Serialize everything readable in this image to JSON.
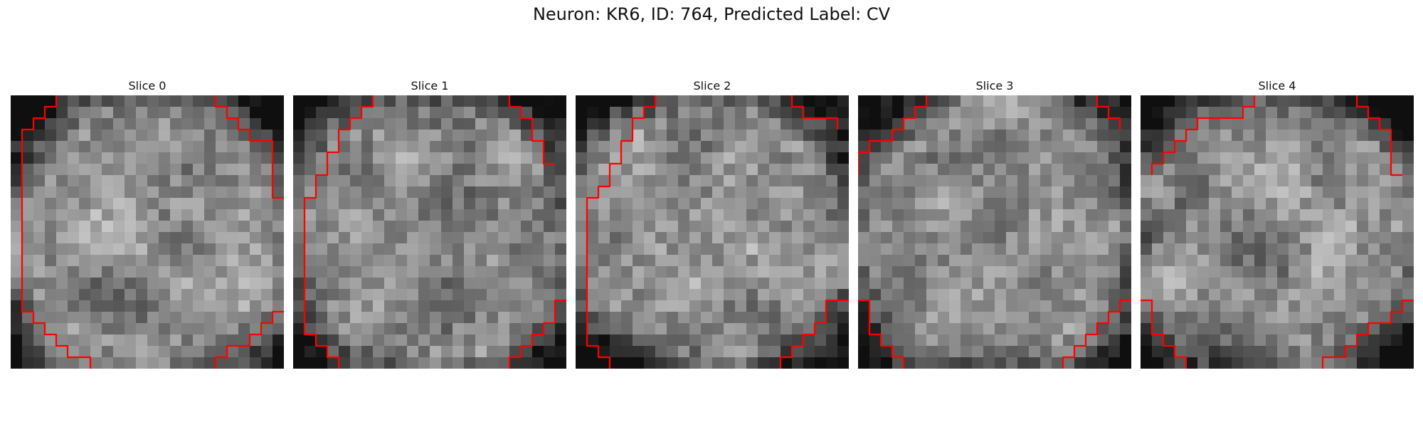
{
  "figure": {
    "title": "Neuron: KR6, ID: 764, Predicted Label: CV"
  },
  "panels": [
    {
      "title": "Slice 0",
      "seed": 11,
      "contour_color": "#ff0000"
    },
    {
      "title": "Slice 1",
      "seed": 23,
      "contour_color": "#ff0000"
    },
    {
      "title": "Slice 2",
      "seed": 37,
      "contour_color": "#ff0000"
    },
    {
      "title": "Slice 3",
      "seed": 41,
      "contour_color": "#ff0000"
    },
    {
      "title": "Slice 4",
      "seed": 53,
      "contour_color": "#ff0000"
    }
  ],
  "colors": {
    "pixel_dark": "#101010",
    "pixel_light": "#f0f0f0",
    "contour": "#ff0000"
  }
}
